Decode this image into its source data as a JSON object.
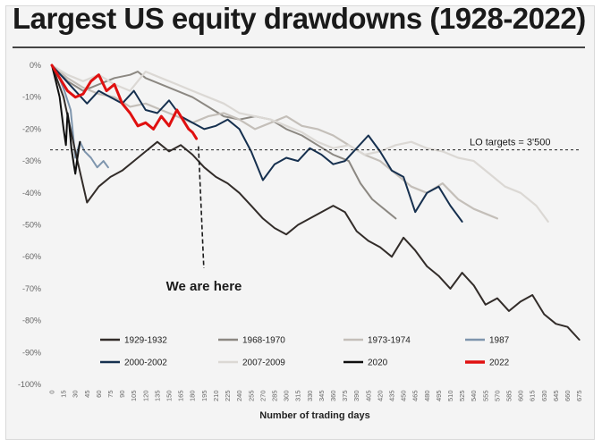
{
  "chart_data": {
    "type": "line",
    "title": "Largest US equity drawdowns (1928-2022)",
    "xlabel": "Number of trading days",
    "ylabel": "",
    "xlim": [
      0,
      680
    ],
    "ylim": [
      -100,
      0
    ],
    "y_ticks": [
      0,
      -10,
      -20,
      -30,
      -40,
      -50,
      -60,
      -70,
      -80,
      -90,
      -100
    ],
    "y_tick_labels": [
      "0%",
      "-10%",
      "-20%",
      "-30%",
      "-40%",
      "-50%",
      "-60%",
      "-70%",
      "-80%",
      "-90%",
      "-100%"
    ],
    "x_ticks": [
      0,
      15,
      30,
      45,
      60,
      75,
      90,
      105,
      120,
      135,
      150,
      165,
      180,
      195,
      210,
      225,
      240,
      255,
      270,
      285,
      300,
      315,
      330,
      345,
      360,
      375,
      390,
      405,
      420,
      435,
      450,
      465,
      480,
      495,
      510,
      525,
      540,
      555,
      570,
      585,
      600,
      615,
      630,
      645,
      660,
      675
    ],
    "reference_line": {
      "y": -26.5,
      "label": "LO targets = 3'500"
    },
    "annotation": {
      "text": "We are here",
      "x": 183,
      "y": -24
    },
    "legend_position": "bottom",
    "grid": false,
    "series": [
      {
        "name": "1968-1970",
        "color": "#8c8882",
        "x": [
          0,
          20,
          40,
          60,
          80,
          100,
          110,
          120,
          140,
          160,
          180,
          200,
          220,
          240,
          260,
          280,
          300,
          320,
          340,
          360,
          380,
          395,
          410,
          420,
          430,
          440
        ],
        "y": [
          0,
          -5,
          -8,
          -6,
          -4,
          -3,
          -2,
          -4,
          -6,
          -8,
          -10,
          -13,
          -16,
          -17,
          -16,
          -17,
          -20,
          -22,
          -25,
          -28,
          -30,
          -37,
          -42,
          -44,
          -46,
          -48
        ]
      },
      {
        "name": "1973-1974",
        "color": "#c4bfb9",
        "x": [
          0,
          20,
          40,
          60,
          80,
          100,
          120,
          140,
          160,
          180,
          200,
          220,
          240,
          260,
          280,
          300,
          320,
          340,
          360,
          380,
          400,
          420,
          440,
          460,
          480,
          500,
          520,
          540,
          560,
          570
        ],
        "y": [
          0,
          -4,
          -7,
          -9,
          -10,
          -13,
          -12,
          -14,
          -16,
          -18,
          -16,
          -15,
          -17,
          -20,
          -18,
          -16,
          -19,
          -20,
          -22,
          -25,
          -28,
          -30,
          -34,
          -38,
          -40,
          -37,
          -42,
          -45,
          -47,
          -48
        ]
      },
      {
        "name": "2007-2009",
        "color": "#dbd8d4",
        "x": [
          0,
          20,
          40,
          60,
          80,
          100,
          120,
          140,
          160,
          180,
          200,
          220,
          240,
          260,
          280,
          300,
          320,
          340,
          360,
          380,
          400,
          420,
          440,
          460,
          480,
          500,
          520,
          540,
          560,
          580,
          600,
          620,
          635
        ],
        "y": [
          0,
          -3,
          -5,
          -3,
          -6,
          -8,
          -2,
          -4,
          -6,
          -8,
          -10,
          -12,
          -15,
          -16,
          -17,
          -19,
          -21,
          -24,
          -26,
          -25,
          -28,
          -27,
          -25,
          -24,
          -26,
          -27,
          -29,
          -30,
          -34,
          -38,
          -40,
          -44,
          -49
        ]
      },
      {
        "name": "2000-2002",
        "color": "#16304f",
        "x": [
          0,
          15,
          30,
          45,
          60,
          75,
          90,
          105,
          120,
          135,
          150,
          165,
          180,
          195,
          210,
          225,
          240,
          255,
          270,
          285,
          300,
          315,
          330,
          345,
          360,
          375,
          390,
          405,
          420,
          435,
          450,
          465,
          480,
          495,
          510,
          525
        ],
        "y": [
          0,
          -4,
          -8,
          -12,
          -8,
          -10,
          -12,
          -8,
          -14,
          -15,
          -11,
          -16,
          -18,
          -20,
          -19,
          -17,
          -20,
          -27,
          -36,
          -31,
          -29,
          -30,
          -26,
          -28,
          -31,
          -30,
          -26,
          -22,
          -27,
          -33,
          -35,
          -46,
          -40,
          -38,
          -44,
          -49
        ]
      },
      {
        "name": "1987",
        "color": "#7e95ad",
        "x": [
          0,
          8,
          16,
          24,
          30,
          36,
          42,
          50,
          58,
          66,
          72
        ],
        "y": [
          0,
          -3,
          -8,
          -14,
          -29,
          -24,
          -27,
          -29,
          -32,
          -30,
          -32
        ]
      },
      {
        "name": "1929-1932",
        "color": "#322c29",
        "x": [
          0,
          15,
          30,
          45,
          60,
          75,
          90,
          105,
          120,
          135,
          150,
          165,
          180,
          195,
          210,
          225,
          240,
          255,
          270,
          285,
          300,
          315,
          330,
          345,
          360,
          375,
          390,
          405,
          420,
          435,
          450,
          465,
          480,
          495,
          510,
          525,
          540,
          555,
          570,
          585,
          600,
          615,
          630,
          645,
          660,
          675
        ],
        "y": [
          0,
          -10,
          -27,
          -43,
          -38,
          -35,
          -33,
          -30,
          -27,
          -24,
          -27,
          -25,
          -28,
          -32,
          -35,
          -37,
          -40,
          -44,
          -48,
          -51,
          -53,
          -50,
          -48,
          -46,
          -44,
          -46,
          -52,
          -55,
          -57,
          -60,
          -54,
          -58,
          -63,
          -66,
          -70,
          -65,
          -69,
          -75,
          -73,
          -77,
          -74,
          -72,
          -78,
          -81,
          -82,
          -86
        ]
      },
      {
        "name": "2020",
        "color": "#0f0f0f",
        "x": [
          0,
          5,
          10,
          15,
          18,
          20,
          22,
          25,
          28,
          30,
          32,
          36
        ],
        "y": [
          0,
          -5,
          -10,
          -20,
          -25,
          -15,
          -18,
          -26,
          -31,
          -34,
          -30,
          -24
        ]
      },
      {
        "name": "2022",
        "color": "#e01010",
        "x": [
          0,
          10,
          20,
          30,
          40,
          50,
          60,
          70,
          80,
          90,
          100,
          110,
          120,
          130,
          140,
          150,
          160,
          170,
          175,
          180,
          185
        ],
        "y": [
          0,
          -4,
          -8,
          -10,
          -9,
          -5,
          -3,
          -8,
          -6,
          -12,
          -15,
          -19,
          -18,
          -20,
          -16,
          -19,
          -14,
          -18,
          -20,
          -21,
          -23
        ]
      }
    ],
    "legend": [
      {
        "name": "1929-1932",
        "color": "#322c29"
      },
      {
        "name": "1968-1970",
        "color": "#8c8882"
      },
      {
        "name": "1973-1974",
        "color": "#c4bfb9"
      },
      {
        "name": "1987",
        "color": "#7e95ad"
      },
      {
        "name": "2000-2002",
        "color": "#16304f"
      },
      {
        "name": "2007-2009",
        "color": "#dbd8d4"
      },
      {
        "name": "2020",
        "color": "#0f0f0f"
      },
      {
        "name": "2022",
        "color": "#e01010"
      }
    ]
  }
}
